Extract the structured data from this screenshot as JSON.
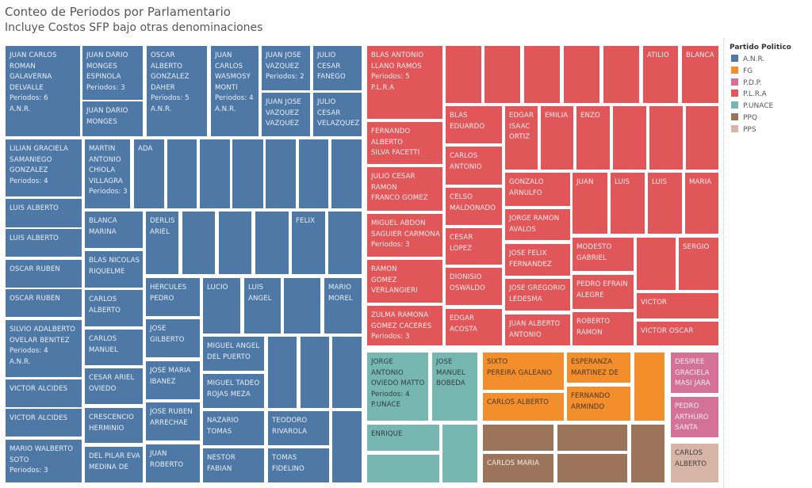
{
  "title": "Conteo de Periodos por Parlamentario",
  "subtitle": "Incluye Costos SFP bajo otras denominaciones",
  "legend": {
    "title": "Partido Politico",
    "items": [
      {
        "label": "A.N.R.",
        "color": "#4e79a7"
      },
      {
        "label": "FG",
        "color": "#f28e2b"
      },
      {
        "label": "P.D.P.",
        "color": "#d37295"
      },
      {
        "label": "P.L.R.A",
        "color": "#e15759"
      },
      {
        "label": "P.UNACE",
        "color": "#76b7b2"
      },
      {
        "label": "PPQ",
        "color": "#9c7459"
      },
      {
        "label": "PPS",
        "color": "#d7b5a6"
      }
    ]
  },
  "chart_data": {
    "type": "treemap",
    "title": "Conteo de Periodos por Parlamentario",
    "subtitle": "Incluye Costos SFP bajo otras denominaciones",
    "color_by": "Partido Politico",
    "legend_position": "right"
  },
  "cells": [
    {
      "party": "A.N.R.",
      "lines": [
        "JUAN CARLOS",
        "ROMAN",
        "GALAVERNA",
        "DELVALLE",
        "Periodos: 6",
        "A.N.R."
      ]
    },
    {
      "party": "A.N.R.",
      "lines": [
        "JUAN DARIO",
        "MONGES",
        "ESPINOLA",
        "Periodos: 3"
      ]
    },
    {
      "party": "A.N.R.",
      "lines": [
        "JUAN DARIO",
        "MONGES"
      ]
    },
    {
      "party": "A.N.R.",
      "lines": [
        "OSCAR",
        "ALBERTO",
        "GONZALEZ",
        "DAHER",
        "Periodos: 5",
        "A.N.R."
      ]
    },
    {
      "party": "A.N.R.",
      "lines": [
        "JUAN",
        "CARLOS",
        "WASMOSY",
        "MONTI",
        "Periodos: 4",
        "A.N.R."
      ]
    },
    {
      "party": "A.N.R.",
      "lines": [
        "JUAN JOSE",
        "VAZQUEZ",
        "Periodos: 2"
      ]
    },
    {
      "party": "A.N.R.",
      "lines": [
        "JUAN JOSE",
        "VAZQUEZ",
        "VAZQUEZ"
      ]
    },
    {
      "party": "A.N.R.",
      "lines": [
        "JULIO",
        "CESAR",
        "FANEGO"
      ]
    },
    {
      "party": "A.N.R.",
      "lines": [
        "JULIO",
        "CESAR",
        "VELAZQUEZ"
      ]
    },
    {
      "party": "A.N.R.",
      "lines": [
        "LILIAN GRACIELA",
        "SAMANIEGO",
        "GONZALEZ",
        "Periodos: 4"
      ]
    },
    {
      "party": "A.N.R.",
      "lines": [
        "LUIS ALBERTO"
      ]
    },
    {
      "party": "A.N.R.",
      "lines": [
        "LUIS ALBERTO"
      ]
    },
    {
      "party": "A.N.R.",
      "lines": [
        "OSCAR RUBEN"
      ]
    },
    {
      "party": "A.N.R.",
      "lines": [
        "OSCAR RUBEN"
      ]
    },
    {
      "party": "A.N.R.",
      "lines": [
        "SILVIO ADALBERTO",
        "OVELAR BENITEZ",
        "Periodos: 4",
        "A.N.R."
      ]
    },
    {
      "party": "A.N.R.",
      "lines": [
        "VICTOR ALCIDES"
      ]
    },
    {
      "party": "A.N.R.",
      "lines": [
        "VICTOR ALCIDES"
      ]
    },
    {
      "party": "A.N.R.",
      "lines": [
        "MARIO WALBERTO",
        "SOTO",
        "Periodos: 3"
      ]
    },
    {
      "party": "A.N.R.",
      "lines": [
        "MARTIN",
        "ANTONIO",
        "CHIOLA",
        "VILLAGRA",
        "Periodos: 3"
      ]
    },
    {
      "party": "A.N.R.",
      "lines": [
        "ADA"
      ]
    },
    {
      "party": "A.N.R.",
      "lines": []
    },
    {
      "party": "A.N.R.",
      "lines": []
    },
    {
      "party": "A.N.R.",
      "lines": []
    },
    {
      "party": "A.N.R.",
      "lines": []
    },
    {
      "party": "A.N.R.",
      "lines": []
    },
    {
      "party": "A.N.R.",
      "lines": []
    },
    {
      "party": "A.N.R.",
      "lines": [
        "BLANCA",
        "MARINA"
      ]
    },
    {
      "party": "A.N.R.",
      "lines": [
        "BLAS NICOLAS",
        "RIQUELME"
      ]
    },
    {
      "party": "A.N.R.",
      "lines": [
        "CARLOS",
        "ALBERTO"
      ]
    },
    {
      "party": "A.N.R.",
      "lines": [
        "CARLOS",
        "MANUEL"
      ]
    },
    {
      "party": "A.N.R.",
      "lines": [
        "CESAR ARIEL",
        "OVIEDO"
      ]
    },
    {
      "party": "A.N.R.",
      "lines": [
        "CRESCENCIO",
        "HERMINIO"
      ]
    },
    {
      "party": "A.N.R.",
      "lines": [
        "DEL PILAR EVA",
        "MEDINA DE"
      ]
    },
    {
      "party": "A.N.R.",
      "lines": [
        "DERLIS",
        "ARIEL"
      ]
    },
    {
      "party": "A.N.R.",
      "lines": []
    },
    {
      "party": "A.N.R.",
      "lines": []
    },
    {
      "party": "A.N.R.",
      "lines": []
    },
    {
      "party": "A.N.R.",
      "lines": [
        "FELIX"
      ]
    },
    {
      "party": "A.N.R.",
      "lines": []
    },
    {
      "party": "A.N.R.",
      "lines": [
        "HERCULES",
        "PEDRO"
      ]
    },
    {
      "party": "A.N.R.",
      "lines": [
        "JOSE",
        "GILBERTO"
      ]
    },
    {
      "party": "A.N.R.",
      "lines": [
        "JOSE MARIA",
        "IBANEZ"
      ]
    },
    {
      "party": "A.N.R.",
      "lines": [
        "JOSE RUBEN",
        "ARRECHAE"
      ]
    },
    {
      "party": "A.N.R.",
      "lines": [
        "JUAN",
        "ROBERTO"
      ]
    },
    {
      "party": "A.N.R.",
      "lines": [
        "LUCIO"
      ]
    },
    {
      "party": "A.N.R.",
      "lines": [
        "LUIS",
        "ANGEL"
      ]
    },
    {
      "party": "A.N.R.",
      "lines": []
    },
    {
      "party": "A.N.R.",
      "lines": [
        "MARIO",
        "MOREL"
      ]
    },
    {
      "party": "A.N.R.",
      "lines": [
        "MIGUEL ANGEL",
        "DEL PUERTO"
      ]
    },
    {
      "party": "A.N.R.",
      "lines": [
        "MIGUEL TADEO",
        "ROJAS MEZA"
      ]
    },
    {
      "party": "A.N.R.",
      "lines": [
        "NAZARIO",
        "TOMAS"
      ]
    },
    {
      "party": "A.N.R.",
      "lines": [
        "NESTOR",
        "FABIAN"
      ]
    },
    {
      "party": "A.N.R.",
      "lines": []
    },
    {
      "party": "A.N.R.",
      "lines": []
    },
    {
      "party": "A.N.R.",
      "lines": []
    },
    {
      "party": "A.N.R.",
      "lines": [
        "TEODORO",
        "RIVAROLA"
      ]
    },
    {
      "party": "A.N.R.",
      "lines": [
        "TOMAS",
        "FIDELINO"
      ]
    },
    {
      "party": "A.N.R.",
      "lines": []
    },
    {
      "party": "P.L.R.A",
      "lines": [
        "BLAS ANTONIO",
        "LLANO RAMOS",
        "Periodos: 5",
        "P.L.R.A"
      ]
    },
    {
      "party": "P.L.R.A",
      "lines": [
        "FERNANDO",
        "ALBERTO",
        "SILVA FACETTI"
      ]
    },
    {
      "party": "P.L.R.A",
      "lines": [
        "JULIO CESAR",
        "RAMON",
        "FRANCO GOMEZ"
      ]
    },
    {
      "party": "P.L.R.A",
      "lines": [
        "MIGUEL ABDON",
        "SAGUIER CARMONA",
        "Periodos: 3"
      ]
    },
    {
      "party": "P.L.R.A",
      "lines": [
        "RAMON",
        "GOMEZ",
        "VERLANGIERI"
      ]
    },
    {
      "party": "P.L.R.A",
      "lines": [
        "ZULMA RAMONA",
        "GOMEZ CACERES",
        "Periodos: 3"
      ]
    },
    {
      "party": "P.L.R.A",
      "lines": []
    },
    {
      "party": "P.L.R.A",
      "lines": []
    },
    {
      "party": "P.L.R.A",
      "lines": []
    },
    {
      "party": "P.L.R.A",
      "lines": []
    },
    {
      "party": "P.L.R.A",
      "lines": []
    },
    {
      "party": "P.L.R.A",
      "lines": [
        "ATILIO"
      ]
    },
    {
      "party": "P.L.R.A",
      "lines": [
        "BLANCA"
      ]
    },
    {
      "party": "P.L.R.A",
      "lines": [
        "BLAS",
        "EDUARDO"
      ]
    },
    {
      "party": "P.L.R.A",
      "lines": [
        "CARLOS",
        "ANTONIO"
      ]
    },
    {
      "party": "P.L.R.A",
      "lines": [
        "CELSO",
        "MALDONADO"
      ]
    },
    {
      "party": "P.L.R.A",
      "lines": [
        "CESAR",
        "LOPEZ"
      ]
    },
    {
      "party": "P.L.R.A",
      "lines": [
        "DIONISIO",
        "OSWALDO"
      ]
    },
    {
      "party": "P.L.R.A",
      "lines": [
        "EDGAR",
        "ACOSTA"
      ]
    },
    {
      "party": "P.L.R.A",
      "lines": [
        "EDGAR",
        "ISAAC",
        "ORTIZ"
      ]
    },
    {
      "party": "P.L.R.A",
      "lines": [
        "EMILIA"
      ]
    },
    {
      "party": "P.L.R.A",
      "lines": [
        "ENZO"
      ]
    },
    {
      "party": "P.L.R.A",
      "lines": []
    },
    {
      "party": "P.L.R.A",
      "lines": []
    },
    {
      "party": "P.L.R.A",
      "lines": []
    },
    {
      "party": "P.L.R.A",
      "lines": [
        "GONZALO",
        "ARNULFO"
      ]
    },
    {
      "party": "P.L.R.A",
      "lines": [
        "JORGE RAMON",
        "AVALOS"
      ]
    },
    {
      "party": "P.L.R.A",
      "lines": [
        "JOSE FELIX",
        "FERNANDEZ"
      ]
    },
    {
      "party": "P.L.R.A",
      "lines": [
        "JOSE GREGORIO",
        "LEDESMA"
      ]
    },
    {
      "party": "P.L.R.A",
      "lines": [
        "JUAN ALBERTO",
        "ANTONIO"
      ]
    },
    {
      "party": "P.L.R.A",
      "lines": [
        "JUAN"
      ]
    },
    {
      "party": "P.L.R.A",
      "lines": [
        "LUIS"
      ]
    },
    {
      "party": "P.L.R.A",
      "lines": [
        "LUIS"
      ]
    },
    {
      "party": "P.L.R.A",
      "lines": [
        "MARIA"
      ]
    },
    {
      "party": "P.L.R.A",
      "lines": [
        "MODESTO",
        "GABRIEL"
      ]
    },
    {
      "party": "P.L.R.A",
      "lines": [
        "PEDRO EFRAIN",
        "ALEGRE"
      ]
    },
    {
      "party": "P.L.R.A",
      "lines": [
        "ROBERTO",
        "RAMON"
      ]
    },
    {
      "party": "P.L.R.A",
      "lines": []
    },
    {
      "party": "P.L.R.A",
      "lines": [
        "SERGIO"
      ]
    },
    {
      "party": "P.L.R.A",
      "lines": [
        "VICTOR"
      ]
    },
    {
      "party": "P.L.R.A",
      "lines": [
        "VICTOR OSCAR"
      ]
    },
    {
      "party": "P.UNACE",
      "lines": [
        "JORGE",
        "ANTONIO",
        "OVIEDO MATTO",
        "Periodos: 4",
        "P.UNACE"
      ]
    },
    {
      "party": "P.UNACE",
      "lines": [
        "JOSE",
        "MANUEL",
        "BOBEDA"
      ]
    },
    {
      "party": "P.UNACE",
      "lines": [
        "ENRIQUE"
      ]
    },
    {
      "party": "P.UNACE",
      "lines": []
    },
    {
      "party": "P.UNACE",
      "lines": []
    },
    {
      "party": "FG",
      "lines": [
        "SIXTO",
        "PEREIRA GALEANO"
      ]
    },
    {
      "party": "FG",
      "lines": [
        "CARLOS ALBERTO"
      ]
    },
    {
      "party": "FG",
      "lines": [
        "ESPERANZA",
        "MARTINEZ DE"
      ]
    },
    {
      "party": "FG",
      "lines": [
        "FERNANDO",
        "ARMINDO"
      ]
    },
    {
      "party": "FG",
      "lines": []
    },
    {
      "party": "PPQ",
      "lines": []
    },
    {
      "party": "PPQ",
      "lines": [
        "CARLOS MARIA"
      ]
    },
    {
      "party": "PPQ",
      "lines": []
    },
    {
      "party": "PPQ",
      "lines": []
    },
    {
      "party": "PPQ",
      "lines": []
    },
    {
      "party": "P.D.P.",
      "lines": [
        "DESIREE",
        "GRACIELA",
        "MASI JARA"
      ]
    },
    {
      "party": "P.D.P.",
      "lines": [
        "PEDRO",
        "ARTHURO",
        "SANTA"
      ]
    },
    {
      "party": "PPS",
      "lines": [
        "CARLOS",
        "ALBERTO"
      ]
    }
  ]
}
